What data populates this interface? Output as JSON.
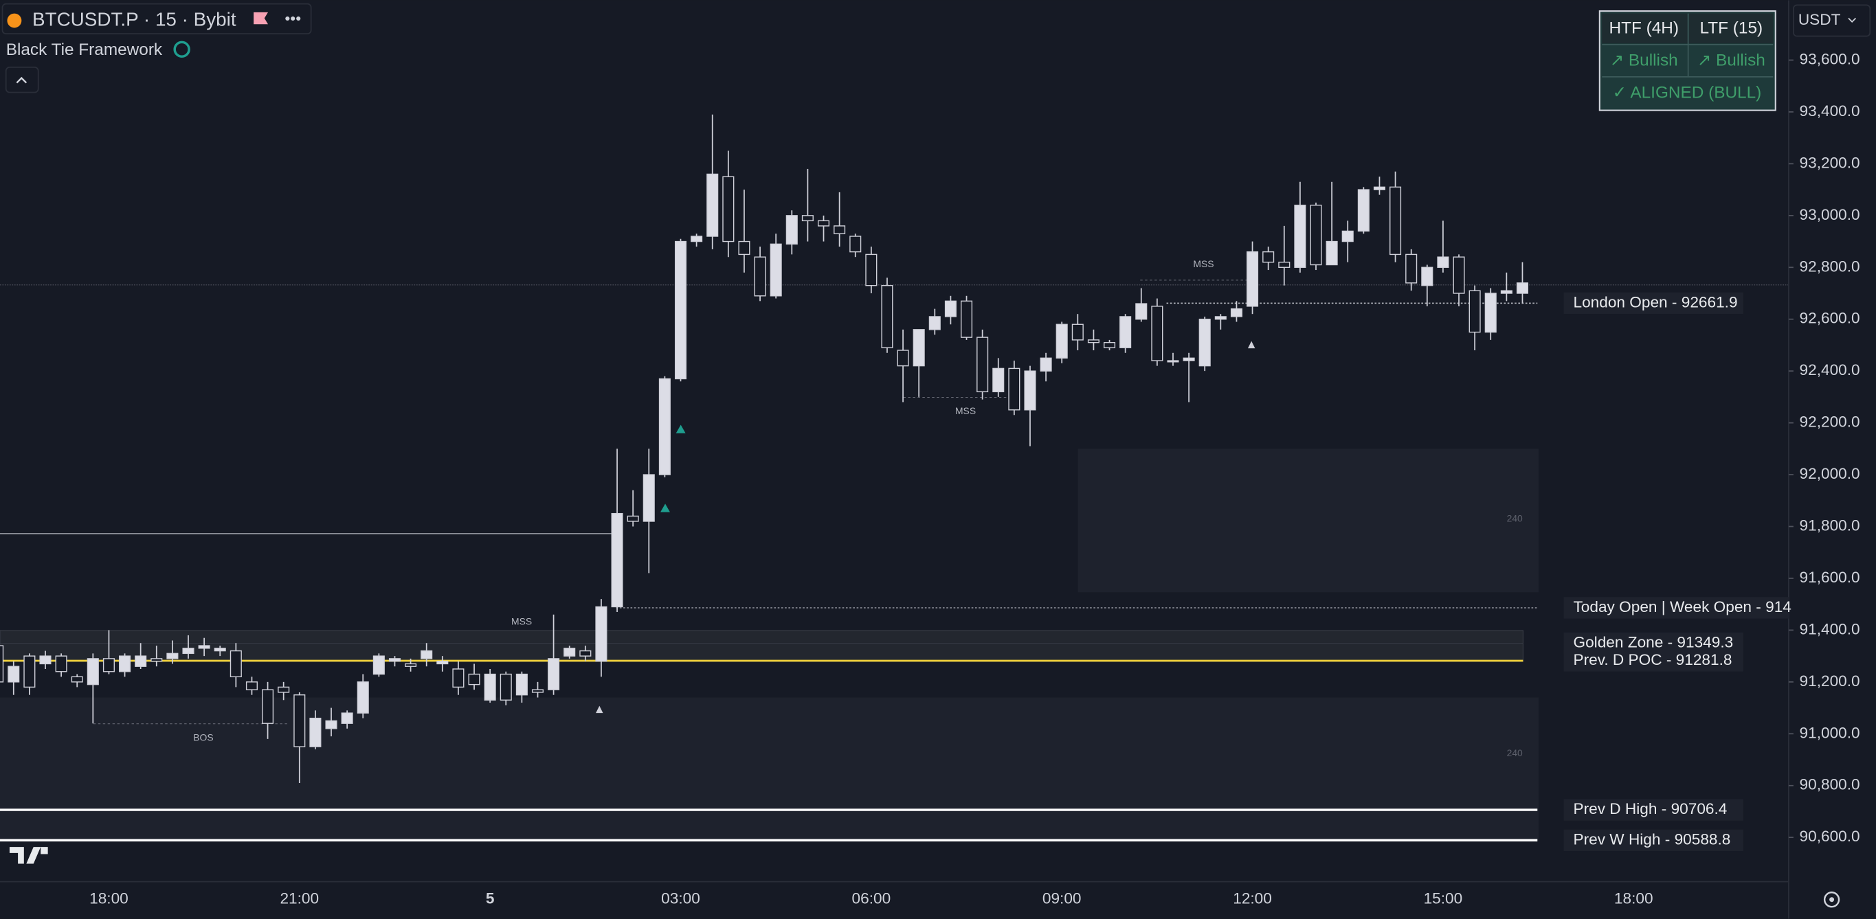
{
  "header": {
    "symbol": "BTCUSDT.P · 15 · Bybit",
    "indicator": "Black Tie Framework",
    "currency": "USDT"
  },
  "table": {
    "rows": [
      [
        "HTF (4H)",
        "LTF (15)"
      ],
      [
        "↗ Bullish",
        "↗ Bullish"
      ],
      [
        "✓ ALIGNED (BULL)"
      ]
    ]
  },
  "chart_data": {
    "type": "candlestick",
    "categories": [
      null,
      null,
      null,
      null,
      null,
      null,
      null,
      "18:00",
      null,
      null,
      null,
      null,
      null,
      null,
      null,
      null,
      null,
      null,
      null,
      "21:00",
      null,
      null,
      null,
      null,
      null,
      null,
      null,
      null,
      null,
      null,
      null,
      "5",
      null,
      null,
      null,
      null,
      null,
      null,
      null,
      null,
      null,
      null,
      null,
      "03:00",
      null,
      null,
      null,
      null,
      null,
      null,
      null,
      null,
      null,
      null,
      null,
      "06:00",
      null,
      null,
      null,
      null,
      null,
      null,
      null,
      null,
      null,
      null,
      null,
      "09:00",
      null,
      null,
      null,
      null,
      null,
      null,
      null,
      null,
      null,
      null,
      null,
      "12:00",
      null,
      null,
      null,
      null,
      null,
      null,
      null,
      null,
      null,
      null,
      null,
      "15:00",
      null,
      null,
      null,
      null,
      null,
      null,
      null,
      null,
      null,
      null,
      null,
      "18:00"
    ],
    "open": [
      91340,
      91200,
      91300,
      91270,
      91300,
      91220,
      91190,
      91290,
      91240,
      91260,
      91290,
      91290,
      91310,
      91330,
      91320,
      91320,
      91200,
      91170,
      91180,
      91150,
      90950,
      91020,
      91040,
      91080,
      91230,
      91280,
      91270,
      91290,
      91270,
      91250,
      91230,
      91130,
      91230,
      91150,
      91170,
      91170,
      91300,
      91320,
      91280,
      91490,
      91840,
      91820,
      92000,
      92370,
      92900,
      92920,
      93150,
      92900,
      92840,
      92690,
      92890,
      93000,
      92980,
      92960,
      92920,
      92850,
      92730,
      92480,
      92420,
      92560,
      92610,
      92670,
      92530,
      92320,
      92410,
      92250,
      92400,
      92450,
      92580,
      92520,
      92510,
      92490,
      92600,
      92650,
      92440,
      92440,
      92420,
      92600,
      92610,
      92650,
      92860,
      92820,
      92800,
      93040,
      92810,
      92900,
      92940,
      93100,
      93110,
      92850,
      92730,
      92800,
      92840,
      92710,
      92550,
      92700,
      92700,
      null,
      null,
      null,
      null,
      null,
      null,
      null
    ],
    "high": [
      91400,
      91280,
      91310,
      91320,
      91310,
      91230,
      91310,
      91400,
      91310,
      91350,
      91340,
      91360,
      91380,
      91370,
      91340,
      91350,
      91220,
      91200,
      91200,
      91160,
      91090,
      91100,
      91090,
      91230,
      91310,
      91300,
      91290,
      91350,
      91300,
      91280,
      91270,
      91250,
      91240,
      91240,
      91200,
      91460,
      91340,
      91340,
      91520,
      92100,
      91940,
      92100,
      92380,
      92910,
      92930,
      93390,
      93250,
      93100,
      92880,
      92930,
      93020,
      93180,
      93000,
      93090,
      92930,
      92880,
      92760,
      92560,
      92560,
      92640,
      92690,
      92690,
      92560,
      92450,
      92440,
      92420,
      92470,
      92590,
      92620,
      92560,
      92520,
      92620,
      92720,
      92680,
      92470,
      92470,
      92610,
      92620,
      92670,
      92900,
      92880,
      92960,
      93130,
      93050,
      93130,
      92980,
      93110,
      93150,
      93170,
      92870,
      92810,
      92980,
      92850,
      92730,
      92720,
      92780,
      92820,
      null,
      null,
      null,
      null,
      null,
      null,
      null
    ],
    "low": [
      91180,
      91150,
      91150,
      91250,
      91220,
      91180,
      91040,
      91230,
      91220,
      91250,
      91260,
      91270,
      91290,
      91300,
      91300,
      91180,
      91150,
      90980,
      91130,
      90810,
      90940,
      90990,
      91020,
      91060,
      91220,
      91260,
      91240,
      91260,
      91240,
      91150,
      91170,
      91120,
      91110,
      91120,
      91140,
      91150,
      91290,
      91280,
      91220,
      91470,
      91800,
      91620,
      91990,
      92360,
      92880,
      92870,
      92840,
      92780,
      92670,
      92680,
      92850,
      92900,
      92900,
      92880,
      92840,
      92700,
      92470,
      92280,
      92300,
      92540,
      92580,
      92520,
      92290,
      92300,
      92230,
      92110,
      92360,
      92430,
      92480,
      92480,
      92480,
      92470,
      92590,
      92420,
      92420,
      92280,
      92400,
      92560,
      92590,
      92620,
      92790,
      92730,
      92780,
      92790,
      92810,
      92820,
      92930,
      93080,
      92820,
      92710,
      92650,
      92780,
      92650,
      92480,
      92520,
      92670,
      92660,
      null,
      null,
      null,
      null,
      null,
      null,
      null
    ],
    "close": [
      91200,
      91260,
      91180,
      91300,
      91240,
      91200,
      91290,
      91240,
      91300,
      91300,
      91280,
      91310,
      91330,
      91340,
      91330,
      91220,
      91170,
      91040,
      91160,
      90950,
      91060,
      91050,
      91080,
      91200,
      91300,
      91290,
      91260,
      91320,
      91280,
      91180,
      91190,
      91230,
      91130,
      91230,
      91160,
      91290,
      91330,
      91300,
      91490,
      91850,
      91820,
      92000,
      92370,
      92900,
      92920,
      93160,
      92900,
      92850,
      92690,
      92890,
      93000,
      92980,
      92960,
      92930,
      92860,
      92730,
      92490,
      92420,
      92560,
      92610,
      92670,
      92530,
      92320,
      92410,
      92250,
      92400,
      92450,
      92580,
      92520,
      92510,
      92490,
      92610,
      92660,
      92440,
      92440,
      92450,
      92600,
      92610,
      92640,
      92860,
      92820,
      92800,
      93040,
      92810,
      92900,
      92940,
      93100,
      93110,
      92850,
      92740,
      92800,
      92840,
      92700,
      92550,
      92700,
      92710,
      92740,
      null,
      null,
      null,
      null,
      null,
      null,
      null
    ],
    "up_color": "#dcdde6",
    "down_color": "#161a25",
    "border_color": "#d0d1da",
    "ylim": [
      90438.5,
      93830.8
    ],
    "yticks": [
      {
        "value": 90600,
        "label": "90,600.0"
      },
      {
        "value": 90800,
        "label": "90,800.0"
      },
      {
        "value": 91000,
        "label": "91,000.0"
      },
      {
        "value": 91200,
        "label": "91,200.0"
      },
      {
        "value": 91400,
        "label": "91,400.0"
      },
      {
        "value": 91600,
        "label": "91,600.0"
      },
      {
        "value": 91800,
        "label": "91,800.0"
      },
      {
        "value": 92000,
        "label": "92,000.0"
      },
      {
        "value": 92200,
        "label": "92,200.0"
      },
      {
        "value": 92400,
        "label": "92,400.0"
      },
      {
        "value": 92600,
        "label": "92,600.0"
      },
      {
        "value": 92800,
        "label": "92,800.0"
      },
      {
        "value": 93000,
        "label": "93,000.0"
      },
      {
        "value": 93200,
        "label": "93,200.0"
      },
      {
        "value": 93400,
        "label": "93,400.0"
      },
      {
        "value": 93600,
        "label": "93,600.0"
      }
    ],
    "levels": [
      {
        "label": "London Open - 92661.9",
        "value": 92661.9
      },
      {
        "label": "Today Open | Week Open - 914",
        "value": 91486
      },
      {
        "label": "Golden Zone - 91349.3",
        "value": 91349.3
      },
      {
        "label": "Prev. D POC - 91281.8",
        "value": 91281.8
      },
      {
        "label": "Prev D High - 90706.4",
        "value": 90706.4
      },
      {
        "label": "Prev W High - 90588.8",
        "value": 90588.8
      }
    ],
    "annotations": [
      "MSS",
      "MSS",
      "MSS",
      "BOS",
      "240",
      "240"
    ]
  }
}
